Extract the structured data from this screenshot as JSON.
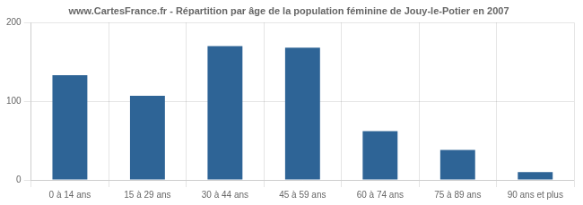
{
  "chart_data": {
    "type": "bar",
    "title": "www.CartesFrance.fr - Répartition par âge de la population féminine de Jouy-le-Potier en 2007",
    "categories": [
      "0 à 14 ans",
      "15 à 29 ans",
      "30 à 44 ans",
      "45 à 59 ans",
      "60 à 74 ans",
      "75 à 89 ans",
      "90 ans et plus"
    ],
    "values": [
      133,
      107,
      170,
      168,
      62,
      38,
      10
    ],
    "color": "#2e6496",
    "ylim": [
      0,
      200
    ],
    "yticks": [
      0,
      100,
      200
    ],
    "grid": true
  }
}
